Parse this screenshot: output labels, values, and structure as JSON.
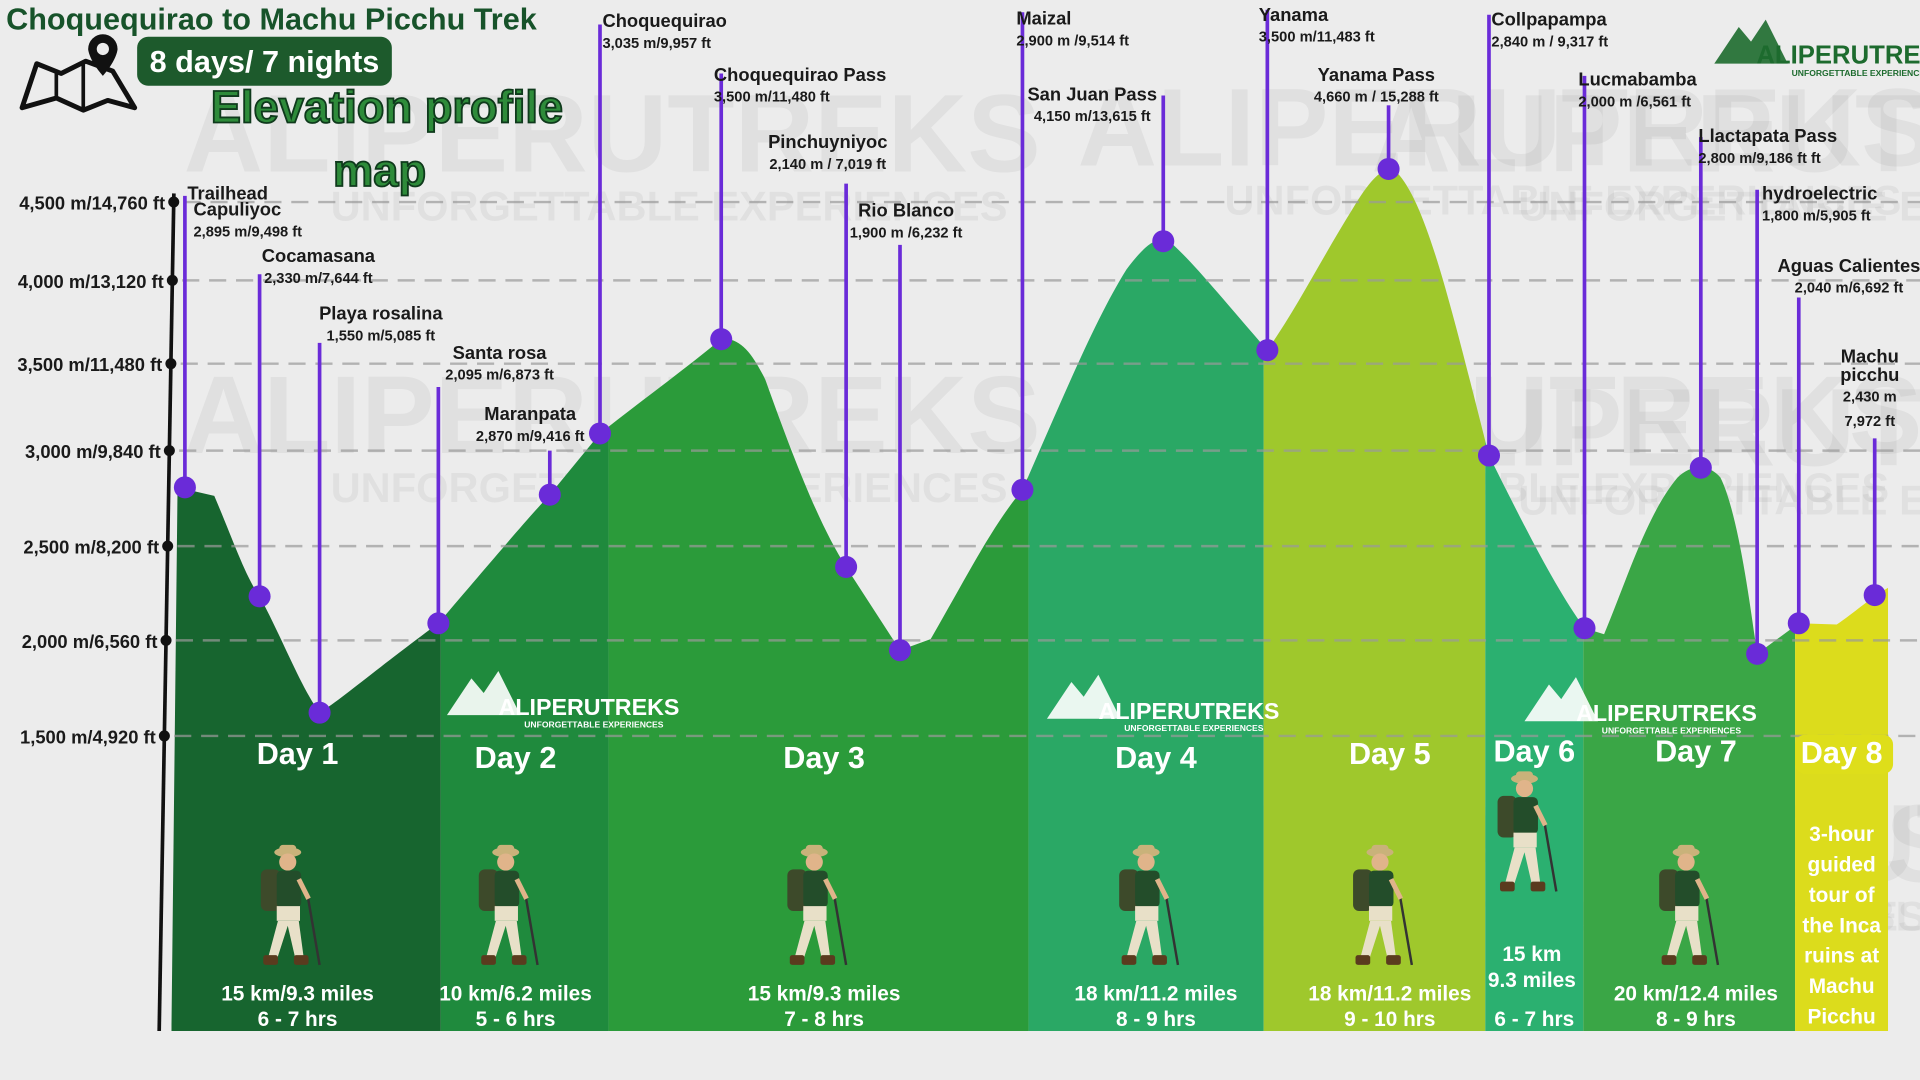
{
  "header": {
    "title": "Choquequirao to Machu Picchu Trek",
    "badge": "8 days/ 7 nights",
    "heading": [
      "Elevation profile",
      "map"
    ]
  },
  "brand": {
    "name": "ALIPERUTREKS",
    "tagline": "UNFORGETTABLE EXPERIENCES"
  },
  "elevation_axis": [
    "4,500 m/14,760 ft",
    "4,000 m/13,120 ft",
    "3,500 m/11,480 ft",
    "3,000 m/9,840 ft",
    "2,500 m/8,200 ft",
    "2,000 m/6,560 ft",
    "1,500 m/4,920 ft"
  ],
  "trailhead": "Trailhead",
  "waypoints": [
    {
      "name": "Capuliyoc",
      "elevation": "2,895 m/9,498 ft"
    },
    {
      "name": "Cocamasana",
      "elevation": "2,330 m/7,644 ft"
    },
    {
      "name": "Playa rosalina",
      "elevation": "1,550 m/5,085 ft"
    },
    {
      "name": "Santa rosa",
      "elevation": "2,095 m/6,873 ft"
    },
    {
      "name": "Maranpata",
      "elevation": "2,870 m/9,416 ft"
    },
    {
      "name": "Choquequirao",
      "elevation": "3,035 m/9,957 ft"
    },
    {
      "name": "Choquequirao Pass",
      "elevation": "3,500 m/11,480 ft"
    },
    {
      "name": "Pinchuyniyoc",
      "elevation": "2,140 m / 7,019 ft"
    },
    {
      "name": "Rio Blanco",
      "elevation": "1,900 m /6,232 ft"
    },
    {
      "name": "Maizal",
      "elevation": "2,900 m /9,514 ft"
    },
    {
      "name": "San Juan Pass",
      "elevation": "4,150 m/13,615 ft"
    },
    {
      "name": "Yanama",
      "elevation": "3,500 m/11,483 ft"
    },
    {
      "name": "Yanama Pass",
      "elevation": "4,660 m / 15,288 ft"
    },
    {
      "name": "Collpapampa",
      "elevation": "2,840 m / 9,317 ft"
    },
    {
      "name": "Lucmabamba",
      "elevation": "2,000 m /6,561 ft"
    },
    {
      "name": "Llactapata Pass",
      "elevation": "2,800 m/9,186 ft ft"
    },
    {
      "name": "hydroelectric",
      "elevation": "1,800 m/5,905 ft"
    },
    {
      "name": "Aguas Calientes",
      "elevation": "2,040 m/6,692 ft"
    },
    {
      "name": [
        "Machu",
        "picchu"
      ],
      "elevation": [
        "2,430 m",
        "7,972 ft"
      ]
    }
  ],
  "days": [
    {
      "label": "Day 1",
      "distance": "15 km/9.3 miles",
      "duration": "6 - 7 hrs"
    },
    {
      "label": "Day 2",
      "distance": "10 km/6.2 miles",
      "duration": "5 - 6 hrs"
    },
    {
      "label": "Day 3",
      "distance": "15 km/9.3 miles",
      "duration": "7 - 8 hrs"
    },
    {
      "label": "Day 4",
      "distance": "18 km/11.2 miles",
      "duration": "8 - 9 hrs"
    },
    {
      "label": "Day 5",
      "distance": "18 km/11.2 miles",
      "duration": "9 - 10 hrs"
    },
    {
      "label": "Day 6",
      "distance": [
        "15 km",
        "9.3 miles"
      ],
      "duration": "6 - 7 hrs"
    },
    {
      "label": "Day 7",
      "distance": "20 km/12.4 miles",
      "duration": "8 - 9 hrs"
    },
    {
      "label": "Day 8",
      "description": [
        "3-hour",
        "guided",
        "tour of",
        "the Inca",
        "ruins at",
        "Machu",
        "Picchu"
      ]
    }
  ]
}
